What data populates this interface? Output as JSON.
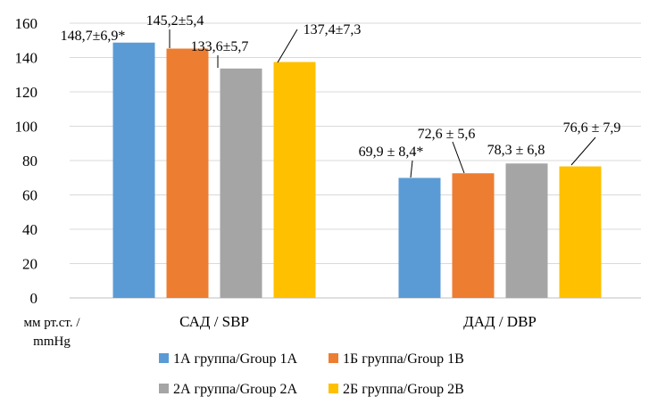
{
  "chart_data": {
    "type": "bar",
    "categories": [
      "САД / SBP",
      "ДАД / DBP"
    ],
    "series": [
      {
        "name": "1А группа/Group 1A",
        "color": "#5B9BD5",
        "values": [
          148.7,
          69.9
        ],
        "labels": [
          "148,7±6,9*",
          "69,9 ± 8,4*"
        ]
      },
      {
        "name": "1Б группа/Group 1B",
        "color": "#ED7D31",
        "values": [
          145.2,
          72.6
        ],
        "labels": [
          "145,2±5,4",
          "72,6 ± 5,6"
        ]
      },
      {
        "name": "2А группа/Group 2A",
        "color": "#A5A5A5",
        "values": [
          133.6,
          78.3
        ],
        "labels": [
          "133,6±5,7",
          "78,3 ± 6,8"
        ]
      },
      {
        "name": "2Б группа/Group 2B",
        "color": "#FFC000",
        "values": [
          137.4,
          76.6
        ],
        "labels": [
          "137,4±7,3",
          "76,6 ± 7,9"
        ]
      }
    ],
    "yticks": [
      "0",
      "20",
      "40",
      "60",
      "80",
      "100",
      "120",
      "140",
      "160"
    ],
    "ylim": [
      0,
      160
    ],
    "ylabel": "мм рт.ст. / mmHg",
    "ylabel_lines": [
      "мм рт.ст. /",
      "mmHg"
    ],
    "grid": true,
    "legend_position": "bottom"
  }
}
